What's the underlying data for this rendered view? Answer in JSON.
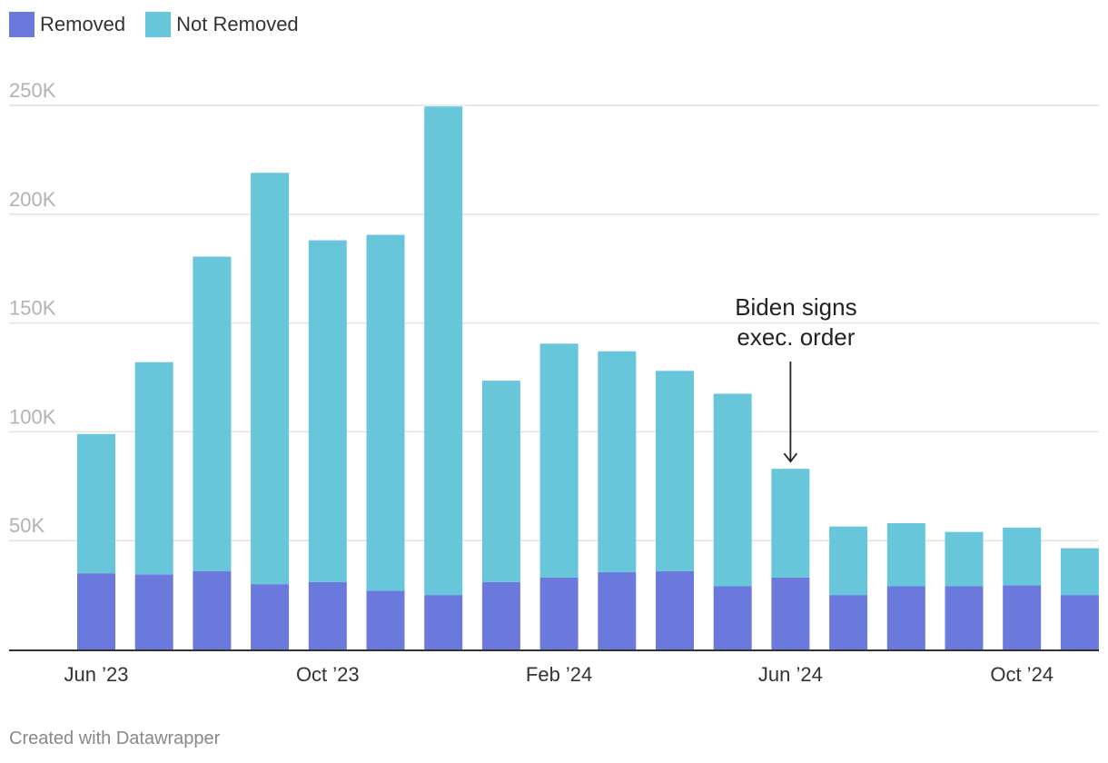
{
  "legend": {
    "items": [
      {
        "label": "Removed",
        "color": "#6b78dc"
      },
      {
        "label": "Not Removed",
        "color": "#68c6da"
      }
    ]
  },
  "chart_data": {
    "type": "bar",
    "stacked": true,
    "categories": [
      "Jun 2023",
      "Jul 2023",
      "Aug 2023",
      "Sep 2023",
      "Oct 2023",
      "Nov 2023",
      "Dec 2023",
      "Jan 2024",
      "Feb 2024",
      "Mar 2024",
      "Apr 2024",
      "May 2024",
      "Jun 2024",
      "Jul 2024",
      "Aug 2024",
      "Sep 2024",
      "Oct 2024",
      "Nov 2024"
    ],
    "series": [
      {
        "name": "Removed",
        "color": "#6b78dc",
        "values": [
          35000,
          34500,
          36000,
          30000,
          31000,
          27000,
          25000,
          31000,
          33000,
          35500,
          36000,
          29000,
          33000,
          25000,
          29000,
          29000,
          29500,
          25000
        ]
      },
      {
        "name": "Not Removed",
        "color": "#68c6da",
        "values": [
          64000,
          97500,
          144500,
          189000,
          157000,
          163500,
          224500,
          92500,
          107500,
          101500,
          92000,
          88500,
          50000,
          31500,
          29000,
          25000,
          26500,
          21500
        ]
      }
    ],
    "ylim": [
      0,
      250000
    ],
    "yticks": [
      {
        "value": 50000,
        "label": "50K"
      },
      {
        "value": 100000,
        "label": "100K"
      },
      {
        "value": 150000,
        "label": "150K"
      },
      {
        "value": 200000,
        "label": "200K"
      },
      {
        "value": 250000,
        "label": "250K"
      }
    ],
    "xticks": [
      {
        "index": 0,
        "label": "Jun ’23"
      },
      {
        "index": 4,
        "label": "Oct ’23"
      },
      {
        "index": 8,
        "label": "Feb ’24"
      },
      {
        "index": 12,
        "label": "Jun ’24"
      },
      {
        "index": 16,
        "label": "Oct ’24"
      }
    ],
    "annotation": {
      "category_index": 12,
      "lines": [
        "Biden signs",
        "exec. order"
      ]
    },
    "title": "",
    "xlabel": "",
    "ylabel": ""
  },
  "credit": "Created with Datawrapper"
}
